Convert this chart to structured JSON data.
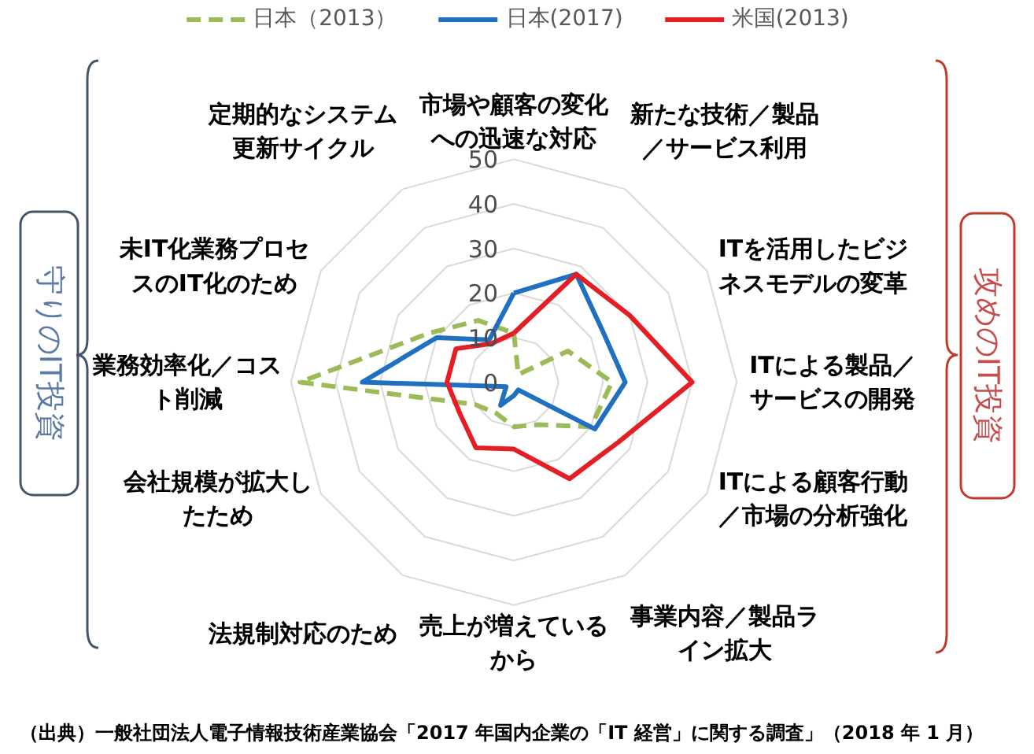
{
  "chart_data": {
    "type": "radar",
    "categories": [
      "市場や顧客の変化への迅速な対応",
      "新たな技術／製品／サービス利用",
      "ITを活用したビジネスモデルの変革",
      "ITによる製品／サービスの開発",
      "ITによる顧客行動／市場の分析強化",
      "事業内容／製品ライン拡大",
      "売上が増えているから",
      "法規制対応のため",
      "会社規模が拡大したため",
      "業務効率化／コスト削減",
      "未IT化業務プロセスのIT化のため",
      "定期的なシステム更新サイクル"
    ],
    "series": [
      {
        "name": "日本（2013）",
        "color": "#9bbb59",
        "line_style": "dashed",
        "values": [
          11,
          2,
          14,
          22,
          20,
          11,
          10,
          8,
          10,
          48,
          22,
          16
        ]
      },
      {
        "name": "日本(2017)",
        "color": "#1f70c1",
        "line_style": "solid",
        "values": [
          20,
          28,
          23,
          25,
          21,
          2,
          3,
          6,
          2,
          34,
          20,
          11
        ]
      },
      {
        "name": "米国(2013)",
        "color": "#e31e24",
        "line_style": "solid",
        "values": [
          11,
          28,
          30,
          40,
          27,
          25,
          15,
          17,
          14,
          15,
          15,
          10
        ]
      }
    ],
    "ylim": [
      0,
      50
    ],
    "yticks": [
      0,
      10,
      20,
      30,
      40,
      50
    ],
    "grid": true,
    "legend": "top",
    "annotations": [
      "守りのIT投資",
      "攻めのIT投資",
      "（出典）一般社団法人電子情報技術産業協会「2017 年国内企業の「IT 経営」に関する調査」（2018 年 1 月）"
    ]
  }
}
